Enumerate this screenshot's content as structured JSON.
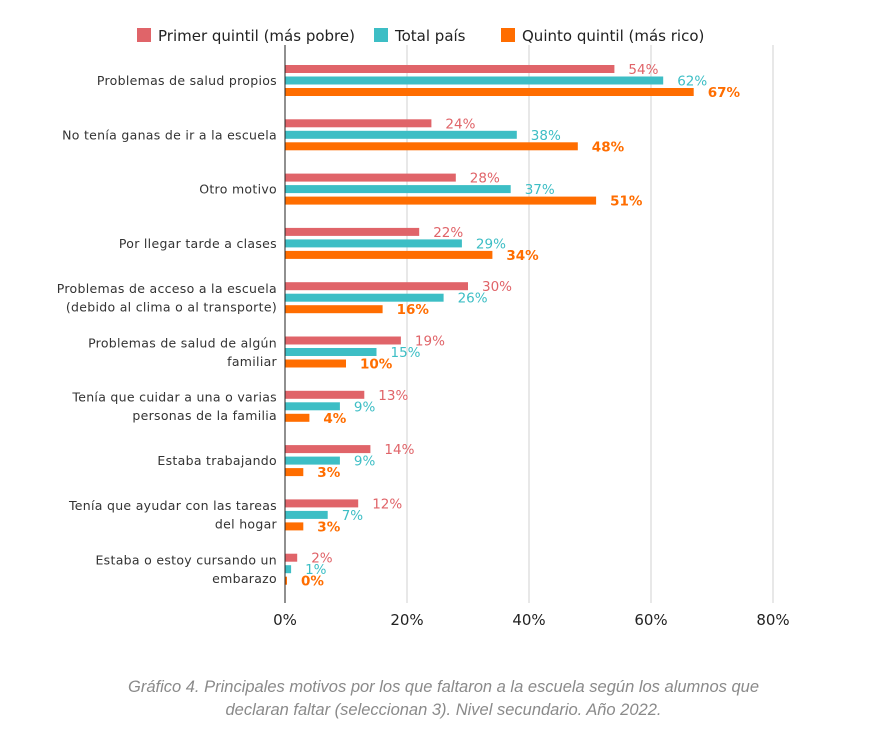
{
  "chart_data": {
    "type": "bar",
    "orientation": "horizontal",
    "categories": [
      [
        "Problemas de salud propios"
      ],
      [
        "No tenía ganas de ir a la escuela"
      ],
      [
        "Otro motivo"
      ],
      [
        "Por llegar tarde a clases"
      ],
      [
        "Problemas de acceso a la escuela",
        "(debido al clima o al transporte)"
      ],
      [
        "Problemas de salud de algún",
        "familiar"
      ],
      [
        "Tenía que cuidar a una o varias",
        "personas de la familia"
      ],
      [
        "Estaba trabajando"
      ],
      [
        "Tenía que ayudar con las tareas",
        "del hogar"
      ],
      [
        "Estaba o estoy cursando un",
        "embarazo"
      ]
    ],
    "series": [
      {
        "name": "Primer quintil (más pobre)",
        "color": "#e06469",
        "values": [
          54,
          24,
          28,
          22,
          30,
          19,
          13,
          14,
          12,
          2
        ],
        "labels": [
          "54%",
          "24%",
          "28%",
          "22%",
          "30%",
          "19%",
          "13%",
          "14%",
          "12%",
          "2%"
        ]
      },
      {
        "name": "Total país",
        "color": "#3dbec5",
        "values": [
          62,
          38,
          37,
          29,
          26,
          15,
          9,
          9,
          7,
          1
        ],
        "labels": [
          "62%",
          "38%",
          "37%",
          "29%",
          "26%",
          "15%",
          "9%",
          "9%",
          "7%",
          "1%"
        ]
      },
      {
        "name": "Quinto quintil (más rico)",
        "color": "#ff6d00",
        "values": [
          67,
          48,
          51,
          34,
          16,
          10,
          4,
          3,
          3,
          0
        ],
        "labels": [
          "67%",
          "48%",
          "51%",
          "34%",
          "16%",
          "10%",
          "4%",
          "3%",
          "3%",
          "0%"
        ]
      }
    ],
    "x_ticks": [
      "0%",
      "20%",
      "40%",
      "60%",
      "80%"
    ],
    "xlim": [
      0,
      80
    ],
    "grid": true,
    "legend_position": "top",
    "caption_lines": [
      "Gráfico 4. Principales motivos por los que faltaron a la escuela según los alumnos que",
      "declaran faltar (seleccionan 3). Nivel secundario. Año 2022."
    ]
  }
}
